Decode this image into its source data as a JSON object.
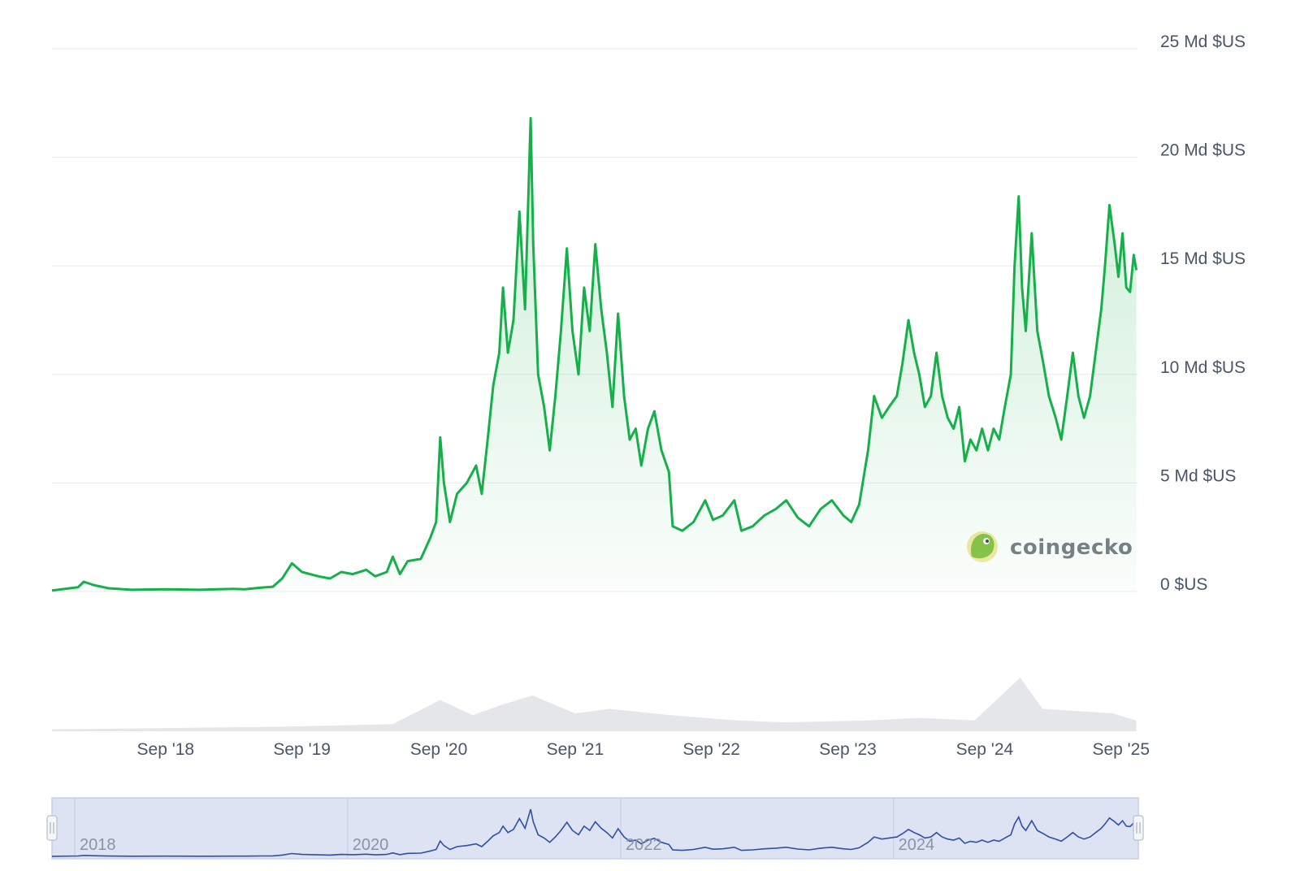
{
  "watermark": {
    "text": "coingecko"
  },
  "colors": {
    "line": "#16b04a",
    "area_top": "#16b04a",
    "volume": "#e4e6ea",
    "navigator_fill": "#dde3f3",
    "navigator_line": "#2d4fa8",
    "grid": "#e8ebef"
  },
  "chart_data": {
    "type": "area",
    "currency": "$US",
    "y_unit": "Md $US",
    "ylim": [
      0,
      25
    ],
    "y_ticks": [
      {
        "value": 0,
        "label": "0 $US"
      },
      {
        "value": 5,
        "label": "5 Md $US"
      },
      {
        "value": 10,
        "label": "10 Md $US"
      },
      {
        "value": 15,
        "label": "15 Md $US"
      },
      {
        "value": 20,
        "label": "20 Md $US"
      },
      {
        "value": 25,
        "label": "25 Md $US"
      }
    ],
    "x_range": [
      "2017-11-01",
      "2025-10-15"
    ],
    "x_ticks": [
      {
        "date": "2018-09-01",
        "label": "Sep '18"
      },
      {
        "date": "2019-09-01",
        "label": "Sep '19"
      },
      {
        "date": "2020-09-01",
        "label": "Sep '20"
      },
      {
        "date": "2021-09-01",
        "label": "Sep '21"
      },
      {
        "date": "2022-09-01",
        "label": "Sep '22"
      },
      {
        "date": "2023-09-01",
        "label": "Sep '23"
      },
      {
        "date": "2024-09-01",
        "label": "Sep '24"
      },
      {
        "date": "2025-09-01",
        "label": "Sep '25"
      }
    ],
    "grid": true,
    "series": [
      {
        "values": [
          [
            "2017-11-01",
            0.05
          ],
          [
            "2018-01-10",
            0.2
          ],
          [
            "2018-01-25",
            0.45
          ],
          [
            "2018-02-20",
            0.3
          ],
          [
            "2018-04-01",
            0.15
          ],
          [
            "2018-06-01",
            0.08
          ],
          [
            "2018-09-01",
            0.1
          ],
          [
            "2018-12-01",
            0.08
          ],
          [
            "2019-03-01",
            0.12
          ],
          [
            "2019-04-01",
            0.1
          ],
          [
            "2019-05-15",
            0.18
          ],
          [
            "2019-06-15",
            0.22
          ],
          [
            "2019-07-10",
            0.6
          ],
          [
            "2019-08-05",
            1.3
          ],
          [
            "2019-09-01",
            0.9
          ],
          [
            "2019-10-15",
            0.7
          ],
          [
            "2019-11-15",
            0.6
          ],
          [
            "2019-12-15",
            0.9
          ],
          [
            "2020-01-15",
            0.8
          ],
          [
            "2020-02-20",
            1.0
          ],
          [
            "2020-03-15",
            0.7
          ],
          [
            "2020-04-15",
            0.9
          ],
          [
            "2020-05-01",
            1.6
          ],
          [
            "2020-05-20",
            0.8
          ],
          [
            "2020-06-10",
            1.4
          ],
          [
            "2020-07-15",
            1.5
          ],
          [
            "2020-08-10",
            2.5
          ],
          [
            "2020-08-25",
            3.2
          ],
          [
            "2020-09-05",
            7.1
          ],
          [
            "2020-09-15",
            5.0
          ],
          [
            "2020-10-01",
            3.2
          ],
          [
            "2020-10-20",
            4.5
          ],
          [
            "2020-11-15",
            5.0
          ],
          [
            "2020-12-10",
            5.8
          ],
          [
            "2020-12-25",
            4.5
          ],
          [
            "2021-01-10",
            7.0
          ],
          [
            "2021-01-25",
            9.5
          ],
          [
            "2021-02-10",
            11.0
          ],
          [
            "2021-02-20",
            14.0
          ],
          [
            "2021-03-05",
            11.0
          ],
          [
            "2021-03-20",
            12.5
          ],
          [
            "2021-04-05",
            17.5
          ],
          [
            "2021-04-20",
            13.0
          ],
          [
            "2021-05-05",
            21.8
          ],
          [
            "2021-05-12",
            16.0
          ],
          [
            "2021-05-25",
            10.0
          ],
          [
            "2021-06-10",
            8.5
          ],
          [
            "2021-06-25",
            6.5
          ],
          [
            "2021-07-10",
            9.0
          ],
          [
            "2021-07-25",
            12.0
          ],
          [
            "2021-08-10",
            15.8
          ],
          [
            "2021-08-25",
            12.0
          ],
          [
            "2021-09-10",
            10.0
          ],
          [
            "2021-09-25",
            14.0
          ],
          [
            "2021-10-10",
            12.0
          ],
          [
            "2021-10-25",
            16.0
          ],
          [
            "2021-11-10",
            13.0
          ],
          [
            "2021-11-25",
            11.0
          ],
          [
            "2021-12-10",
            8.5
          ],
          [
            "2021-12-25",
            12.8
          ],
          [
            "2022-01-10",
            9.0
          ],
          [
            "2022-01-25",
            7.0
          ],
          [
            "2022-02-10",
            7.5
          ],
          [
            "2022-02-25",
            5.8
          ],
          [
            "2022-03-15",
            7.5
          ],
          [
            "2022-04-01",
            8.3
          ],
          [
            "2022-04-20",
            6.5
          ],
          [
            "2022-05-10",
            5.5
          ],
          [
            "2022-05-20",
            3.0
          ],
          [
            "2022-06-15",
            2.8
          ],
          [
            "2022-07-15",
            3.2
          ],
          [
            "2022-08-15",
            4.2
          ],
          [
            "2022-09-05",
            3.3
          ],
          [
            "2022-10-01",
            3.5
          ],
          [
            "2022-11-01",
            4.2
          ],
          [
            "2022-11-20",
            2.8
          ],
          [
            "2022-12-20",
            3.0
          ],
          [
            "2023-01-20",
            3.5
          ],
          [
            "2023-02-20",
            3.8
          ],
          [
            "2023-03-20",
            4.2
          ],
          [
            "2023-04-20",
            3.4
          ],
          [
            "2023-05-20",
            3.0
          ],
          [
            "2023-06-20",
            3.8
          ],
          [
            "2023-07-20",
            4.2
          ],
          [
            "2023-08-20",
            3.5
          ],
          [
            "2023-09-10",
            3.2
          ],
          [
            "2023-10-01",
            4.0
          ],
          [
            "2023-10-25",
            6.5
          ],
          [
            "2023-11-10",
            9.0
          ],
          [
            "2023-12-01",
            8.0
          ],
          [
            "2023-12-20",
            8.5
          ],
          [
            "2024-01-10",
            9.0
          ],
          [
            "2024-01-25",
            10.5
          ],
          [
            "2024-02-10",
            12.5
          ],
          [
            "2024-02-25",
            11.0
          ],
          [
            "2024-03-10",
            10.0
          ],
          [
            "2024-03-25",
            8.5
          ],
          [
            "2024-04-10",
            9.0
          ],
          [
            "2024-04-25",
            11.0
          ],
          [
            "2024-05-10",
            9.0
          ],
          [
            "2024-05-25",
            8.0
          ],
          [
            "2024-06-10",
            7.5
          ],
          [
            "2024-06-25",
            8.5
          ],
          [
            "2024-07-10",
            6.0
          ],
          [
            "2024-07-25",
            7.0
          ],
          [
            "2024-08-10",
            6.5
          ],
          [
            "2024-08-25",
            7.5
          ],
          [
            "2024-09-10",
            6.5
          ],
          [
            "2024-09-25",
            7.5
          ],
          [
            "2024-10-10",
            7.0
          ],
          [
            "2024-10-25",
            8.5
          ],
          [
            "2024-11-10",
            10.0
          ],
          [
            "2024-11-20",
            15.0
          ],
          [
            "2024-12-01",
            18.2
          ],
          [
            "2024-12-10",
            14.0
          ],
          [
            "2024-12-20",
            12.0
          ],
          [
            "2025-01-05",
            16.5
          ],
          [
            "2025-01-20",
            12.0
          ],
          [
            "2025-02-05",
            10.5
          ],
          [
            "2025-02-20",
            9.0
          ],
          [
            "2025-03-10",
            8.0
          ],
          [
            "2025-03-25",
            7.0
          ],
          [
            "2025-04-10",
            9.0
          ],
          [
            "2025-04-25",
            11.0
          ],
          [
            "2025-05-10",
            9.0
          ],
          [
            "2025-05-25",
            8.0
          ],
          [
            "2025-06-10",
            9.0
          ],
          [
            "2025-06-25",
            11.0
          ],
          [
            "2025-07-10",
            13.0
          ],
          [
            "2025-07-20",
            15.0
          ],
          [
            "2025-08-01",
            17.8
          ],
          [
            "2025-08-15",
            16.0
          ],
          [
            "2025-08-25",
            14.5
          ],
          [
            "2025-09-05",
            16.5
          ],
          [
            "2025-09-15",
            14.0
          ],
          [
            "2025-09-25",
            13.8
          ],
          [
            "2025-10-05",
            15.5
          ],
          [
            "2025-10-12",
            14.8
          ]
        ]
      }
    ],
    "volume": {
      "note_unit": "relative",
      "values": [
        [
          "2017-11-01",
          0.02
        ],
        [
          "2019-07-01",
          0.05
        ],
        [
          "2020-05-01",
          0.08
        ],
        [
          "2020-09-05",
          0.35
        ],
        [
          "2020-12-01",
          0.18
        ],
        [
          "2021-02-20",
          0.3
        ],
        [
          "2021-05-10",
          0.4
        ],
        [
          "2021-09-01",
          0.2
        ],
        [
          "2021-12-01",
          0.25
        ],
        [
          "2022-05-15",
          0.18
        ],
        [
          "2022-11-10",
          0.12
        ],
        [
          "2023-03-15",
          0.1
        ],
        [
          "2023-10-25",
          0.12
        ],
        [
          "2024-03-10",
          0.15
        ],
        [
          "2024-08-05",
          0.12
        ],
        [
          "2024-12-05",
          0.6
        ],
        [
          "2025-02-03",
          0.25
        ],
        [
          "2025-08-10",
          0.2
        ],
        [
          "2025-10-12",
          0.12
        ]
      ]
    },
    "navigator": {
      "year_labels": [
        "2018",
        "2020",
        "2022",
        "2024"
      ],
      "selection": [
        "2017-11-01",
        "2025-10-15"
      ]
    }
  }
}
